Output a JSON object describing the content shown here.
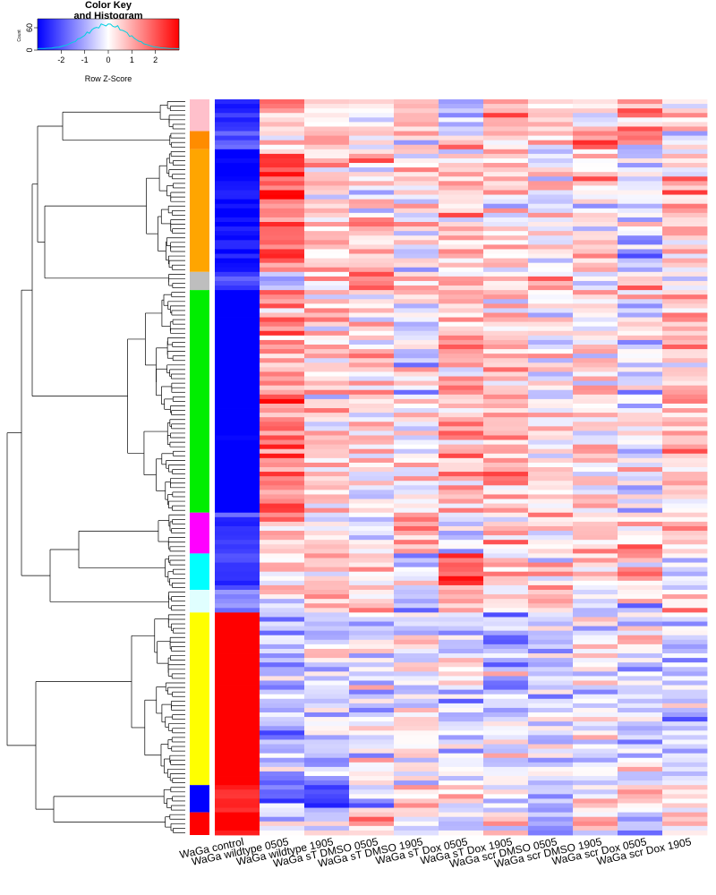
{
  "chart_data": {
    "type": "heatmap",
    "color_key": {
      "title_line1": "Color Key",
      "title_line2": "and Histogram",
      "xlabel": "Row Z-Score",
      "ylabel": "Count",
      "x_range": [
        -3,
        3
      ],
      "x_ticks": [
        "-2",
        "-1",
        "0",
        "1",
        "2"
      ],
      "y_ticks": [
        "0",
        "60"
      ],
      "low_color": "#0000ff",
      "mid_color": "#ffffff",
      "high_color": "#ff0000",
      "histogram_color": "#00d0e0"
    },
    "columns": [
      "WaGa control",
      "WaGa wildtype 0505",
      "WaGa wildtype 1905",
      "WaGa sT DMSO 0505",
      "WaGa sT DMSO 1905",
      "WaGa sT Dox 0505",
      "WaGa sT Dox 1905",
      "WaGa scr DMSO 0505",
      "WaGa scr DMSO 1905",
      "WaGa scr Dox 0505",
      "WaGa scr Dox 1905"
    ],
    "row_clusters": [
      {
        "color": "#ffc0cb",
        "rows": 7
      },
      {
        "color": "#ff8c00",
        "rows": 4
      },
      {
        "color": "#ffa500",
        "rows": 27
      },
      {
        "color": "#bebebe",
        "rows": 4
      },
      {
        "color": "#00ee00",
        "rows": 49
      },
      {
        "color": "#ff00ff",
        "rows": 9
      },
      {
        "color": "#00ffff",
        "rows": 8
      },
      {
        "color": "#e0ffff",
        "rows": 5
      },
      {
        "color": "#ffff00",
        "rows": 38
      },
      {
        "color": "#0000ff",
        "rows": 6
      },
      {
        "color": "#ff0000",
        "rows": 5
      }
    ],
    "cluster_profiles": [
      [
        -1.9,
        0.5,
        0.2,
        0.0,
        0.5,
        -0.6,
        0.6,
        0.3,
        0.2,
        0.8,
        0.5
      ],
      [
        -1.5,
        0.3,
        0.7,
        0.2,
        0.1,
        0.4,
        0.3,
        0.2,
        1.0,
        0.2,
        0.1
      ],
      [
        -2.2,
        1.4,
        0.4,
        0.3,
        0.2,
        0.5,
        0.3,
        -0.1,
        0.4,
        -0.3,
        0.6
      ],
      [
        -1.5,
        -0.4,
        0.3,
        1.0,
        0.5,
        0.6,
        0.6,
        0.3,
        -0.2,
        0.6,
        -0.3
      ],
      [
        -2.6,
        0.9,
        0.4,
        0.2,
        -0.1,
        0.5,
        0.6,
        0.2,
        0.2,
        -0.2,
        0.5
      ],
      [
        -1.7,
        0.8,
        0.3,
        -0.2,
        0.9,
        -0.5,
        0.5,
        0.3,
        0.3,
        0.5,
        0.3
      ],
      [
        -1.4,
        0.3,
        0.5,
        0.4,
        -0.3,
        1.2,
        0.3,
        0.4,
        0.1,
        0.3,
        -0.6
      ],
      [
        -0.9,
        -0.3,
        0.7,
        0.5,
        -0.5,
        0.5,
        0.3,
        0.2,
        -0.2,
        -0.4,
        0.2
      ],
      [
        2.8,
        -0.6,
        -0.3,
        -0.2,
        -0.2,
        -0.2,
        -0.4,
        -0.3,
        -0.1,
        -0.2,
        -0.3
      ],
      [
        1.9,
        -0.9,
        -1.2,
        -0.3,
        0.1,
        0.6,
        -0.2,
        -0.5,
        0.2,
        -0.1,
        0.2
      ],
      [
        2.3,
        -0.5,
        0.1,
        0.7,
        -0.4,
        -0.2,
        0.3,
        -0.3,
        0.2,
        -0.8,
        0.4
      ]
    ]
  }
}
